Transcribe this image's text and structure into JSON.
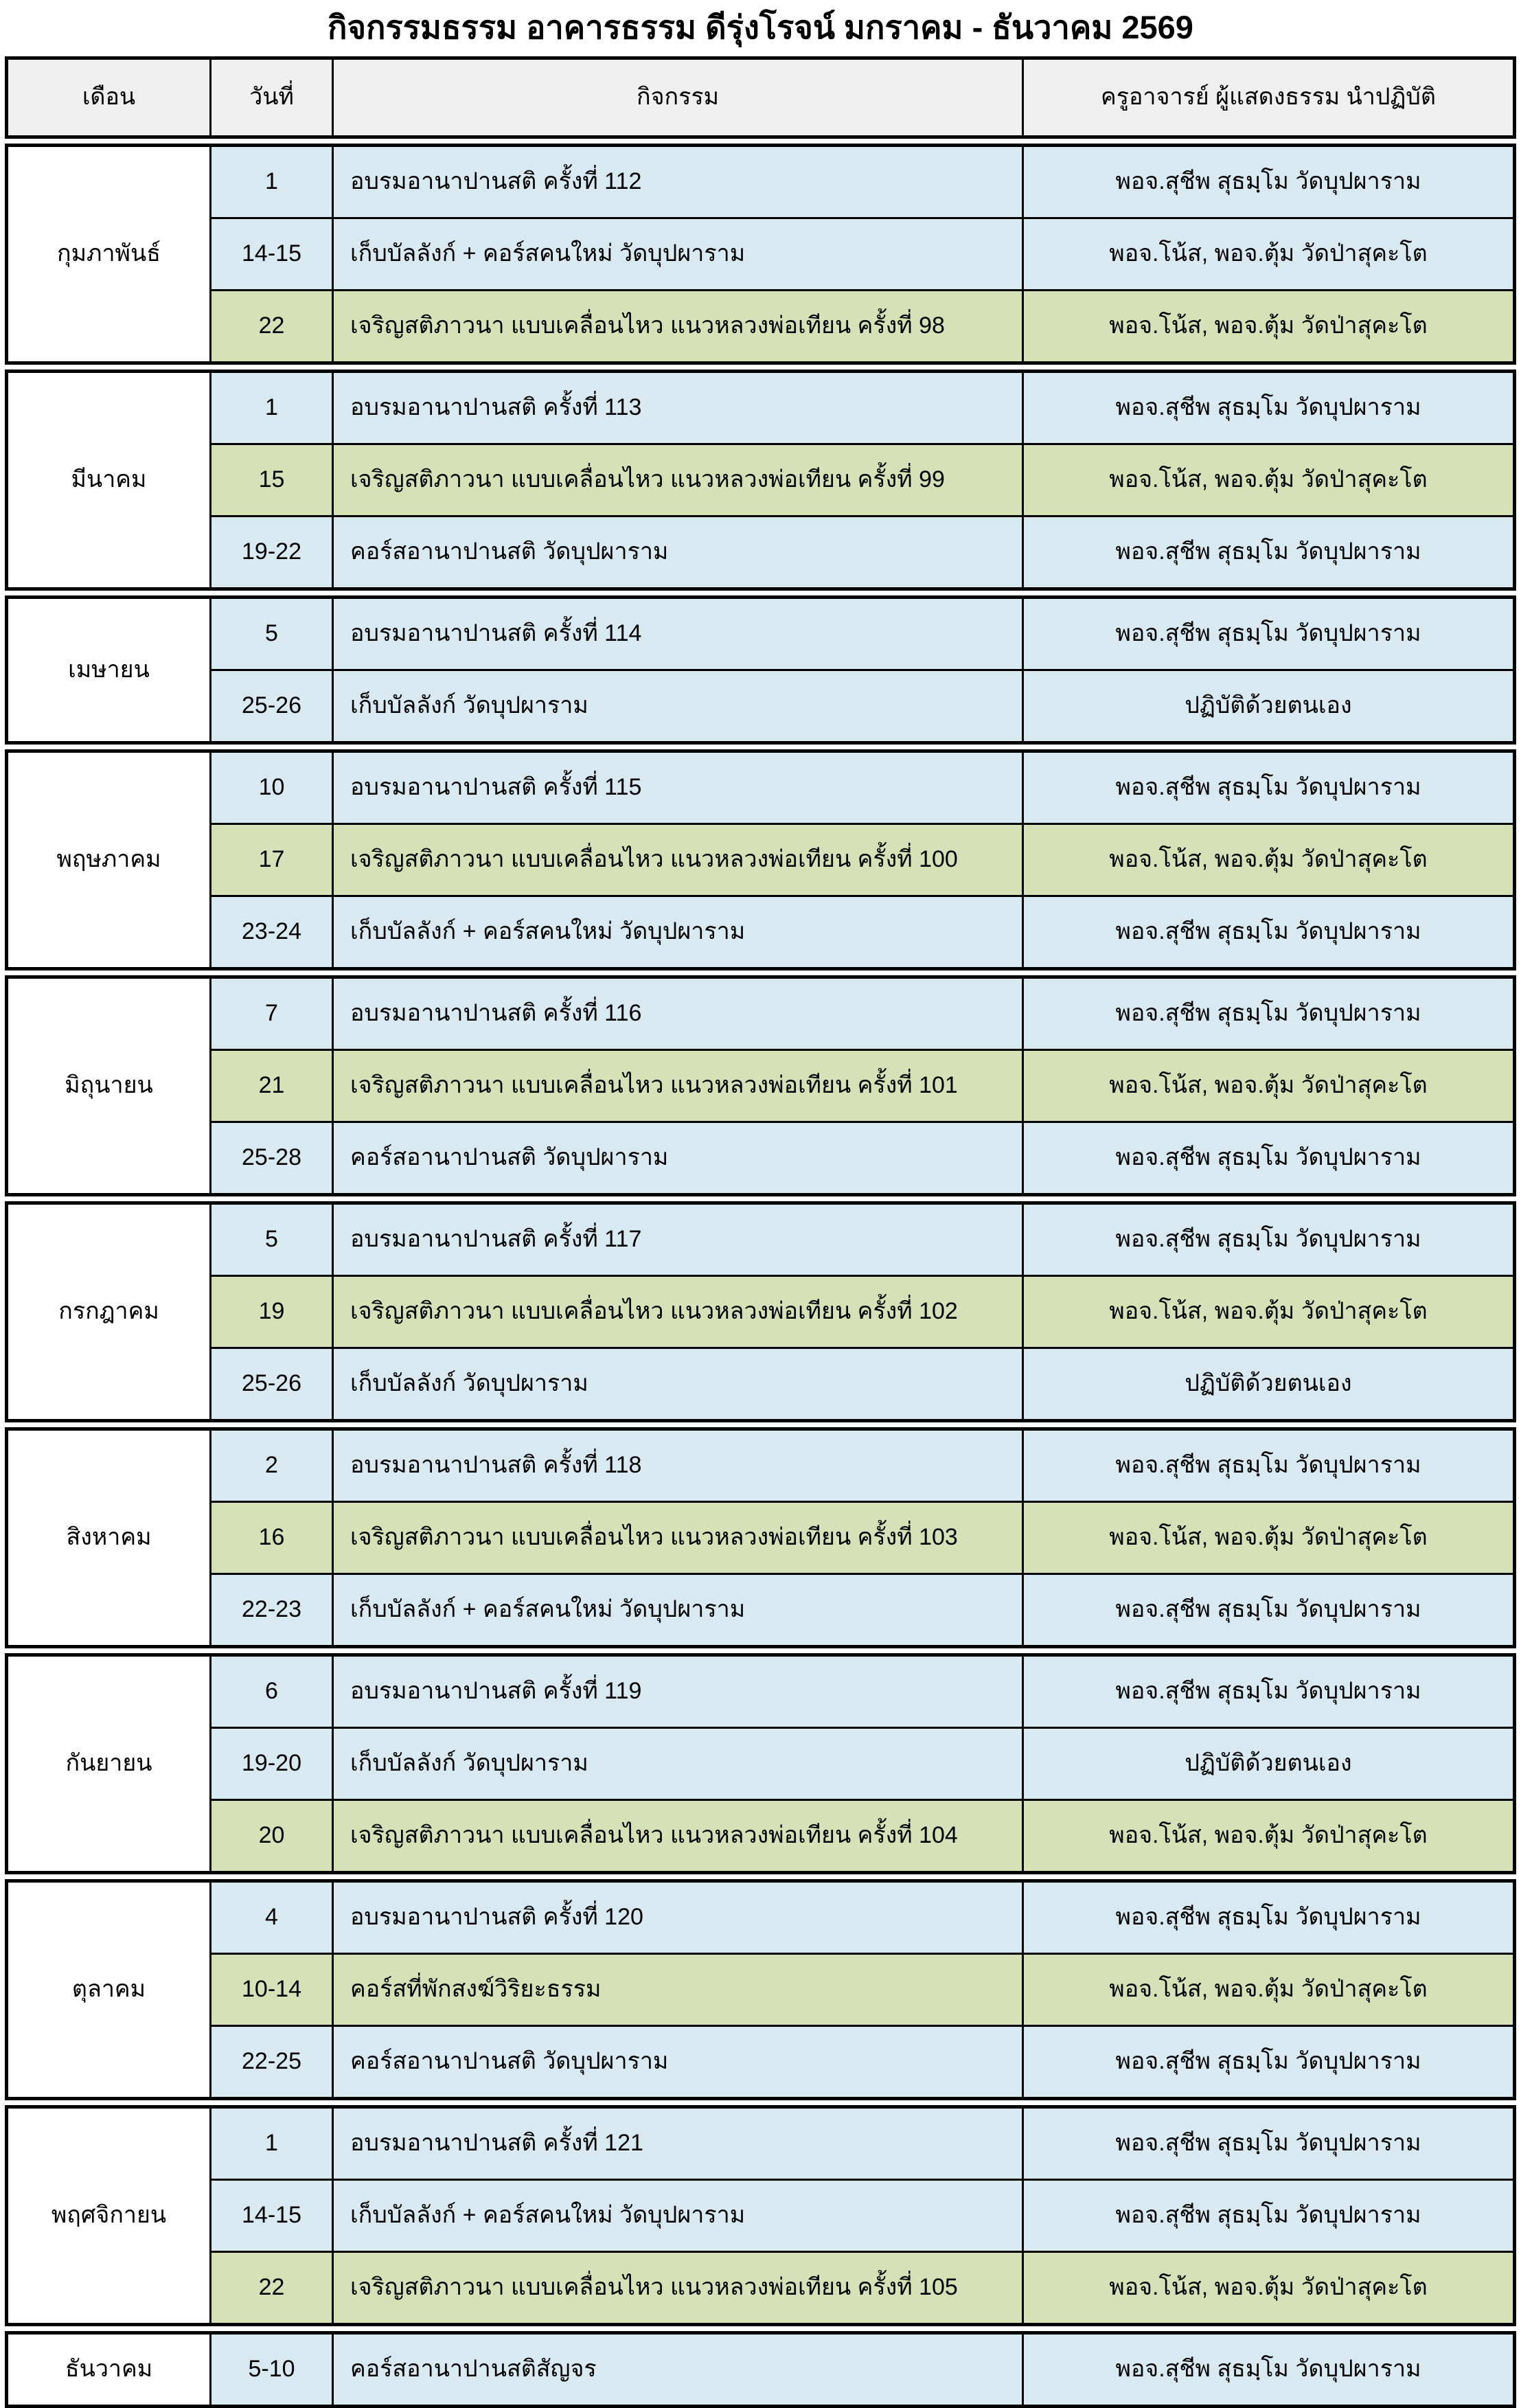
{
  "title": "กิจกรรมธรรม อาคารธรรม ดีรุ่งโรจน์ มกราคม - ธันวาคม 2569",
  "headers": {
    "month": "เดือน",
    "date": "วันที่",
    "activity": "กิจกรรม",
    "teacher": "ครูอาจารย์ ผู้แสดงธรรม นำปฏิบัติ"
  },
  "colors": {
    "blue": "#d9e9f1",
    "green": "#d6e1b7",
    "header_bg": "#efefef",
    "border": "#000000"
  },
  "months": [
    {
      "name": "กุมภาพันธ์",
      "rows": [
        {
          "date": "1",
          "activity": "อบรมอานาปานสติ ครั้งที่ 112",
          "teacher": "พอจ.สุชีพ สุธมฺโม วัดบุปผาราม",
          "highlight": "blue"
        },
        {
          "date": "14-15",
          "activity": "เก็บบัลลังก์  + คอร์สคนใหม่ วัดบุปผาราม",
          "teacher": "พอจ.โน้ส, พอจ.ตุ้ม วัดป่าสุคะโต",
          "highlight": "blue"
        },
        {
          "date": "22",
          "activity": "เจริญสติภาวนา แบบเคลื่อนไหว แนวหลวงพ่อเทียน ครั้งที่ 98",
          "teacher": "พอจ.โน้ส, พอจ.ตุ้ม วัดป่าสุคะโต",
          "highlight": "green"
        }
      ]
    },
    {
      "name": "มีนาคม",
      "rows": [
        {
          "date": "1",
          "activity": "อบรมอานาปานสติ ครั้งที่ 113",
          "teacher": "พอจ.สุชีพ สุธมฺโม วัดบุปผาราม",
          "highlight": "blue"
        },
        {
          "date": "15",
          "activity": "เจริญสติภาวนา แบบเคลื่อนไหว แนวหลวงพ่อเทียน ครั้งที่ 99",
          "teacher": "พอจ.โน้ส, พอจ.ตุ้ม วัดป่าสุคะโต",
          "highlight": "green"
        },
        {
          "date": "19-22",
          "activity": "คอร์สอานาปานสติ วัดบุปผาราม",
          "teacher": "พอจ.สุชีพ สุธมฺโม วัดบุปผาราม",
          "highlight": "blue"
        }
      ]
    },
    {
      "name": "เมษายน",
      "rows": [
        {
          "date": "5",
          "activity": "อบรมอานาปานสติ ครั้งที่ 114",
          "teacher": "พอจ.สุชีพ สุธมฺโม วัดบุปผาราม",
          "highlight": "blue"
        },
        {
          "date": "25-26",
          "activity": "เก็บบัลลังก์ วัดบุปผาราม",
          "teacher": "ปฏิบัติด้วยตนเอง",
          "highlight": "blue"
        }
      ]
    },
    {
      "name": "พฤษภาคม",
      "rows": [
        {
          "date": "10",
          "activity": "อบรมอานาปานสติ ครั้งที่ 115",
          "teacher": "พอจ.สุชีพ สุธมฺโม วัดบุปผาราม",
          "highlight": "blue"
        },
        {
          "date": "17",
          "activity": "เจริญสติภาวนา แบบเคลื่อนไหว แนวหลวงพ่อเทียน ครั้งที่ 100",
          "teacher": "พอจ.โน้ส, พอจ.ตุ้ม วัดป่าสุคะโต",
          "highlight": "green"
        },
        {
          "date": "23-24",
          "activity": "เก็บบัลลังก์  + คอร์สคนใหม่ วัดบุปผาราม",
          "teacher": "พอจ.สุชีพ สุธมฺโม วัดบุปผาราม",
          "highlight": "blue"
        }
      ]
    },
    {
      "name": "มิถุนายน",
      "rows": [
        {
          "date": "7",
          "activity": "อบรมอานาปานสติ ครั้งที่ 116",
          "teacher": "พอจ.สุชีพ สุธมฺโม วัดบุปผาราม",
          "highlight": "blue"
        },
        {
          "date": "21",
          "activity": "เจริญสติภาวนา แบบเคลื่อนไหว แนวหลวงพ่อเทียน ครั้งที่ 101",
          "teacher": "พอจ.โน้ส, พอจ.ตุ้ม วัดป่าสุคะโต",
          "highlight": "green"
        },
        {
          "date": "25-28",
          "activity": "คอร์สอานาปานสติ วัดบุปผาราม",
          "teacher": "พอจ.สุชีพ สุธมฺโม วัดบุปผาราม",
          "highlight": "blue"
        }
      ]
    },
    {
      "name": "กรกฎาคม",
      "rows": [
        {
          "date": "5",
          "activity": "อบรมอานาปานสติ ครั้งที่ 117",
          "teacher": "พอจ.สุชีพ สุธมฺโม วัดบุปผาราม",
          "highlight": "blue"
        },
        {
          "date": "19",
          "activity": "เจริญสติภาวนา แบบเคลื่อนไหว แนวหลวงพ่อเทียน ครั้งที่ 102",
          "teacher": "พอจ.โน้ส, พอจ.ตุ้ม วัดป่าสุคะโต",
          "highlight": "green"
        },
        {
          "date": "25-26",
          "activity": "เก็บบัลลังก์ วัดบุปผาราม",
          "teacher": "ปฏิบัติด้วยตนเอง",
          "highlight": "blue"
        }
      ]
    },
    {
      "name": "สิงหาคม",
      "rows": [
        {
          "date": "2",
          "activity": "อบรมอานาปานสติ ครั้งที่ 118",
          "teacher": "พอจ.สุชีพ สุธมฺโม วัดบุปผาราม",
          "highlight": "blue"
        },
        {
          "date": "16",
          "activity": "เจริญสติภาวนา แบบเคลื่อนไหว แนวหลวงพ่อเทียน ครั้งที่ 103",
          "teacher": "พอจ.โน้ส, พอจ.ตุ้ม วัดป่าสุคะโต",
          "highlight": "green"
        },
        {
          "date": "22-23",
          "activity": "เก็บบัลลังก์  + คอร์สคนใหม่ วัดบุปผาราม",
          "teacher": "พอจ.สุชีพ สุธมฺโม วัดบุปผาราม",
          "highlight": "blue"
        }
      ]
    },
    {
      "name": "กันยายน",
      "rows": [
        {
          "date": "6",
          "activity": "อบรมอานาปานสติ ครั้งที่ 119",
          "teacher": "พอจ.สุชีพ สุธมฺโม วัดบุปผาราม",
          "highlight": "blue"
        },
        {
          "date": "19-20",
          "activity": "เก็บบัลลังก์ วัดบุปผาราม",
          "teacher": "ปฏิบัติด้วยตนเอง",
          "highlight": "blue"
        },
        {
          "date": "20",
          "activity": "เจริญสติภาวนา แบบเคลื่อนไหว แนวหลวงพ่อเทียน ครั้งที่ 104",
          "teacher": "พอจ.โน้ส, พอจ.ตุ้ม วัดป่าสุคะโต",
          "highlight": "green"
        }
      ]
    },
    {
      "name": "ตุลาคม",
      "rows": [
        {
          "date": "4",
          "activity": "อบรมอานาปานสติ ครั้งที่ 120",
          "teacher": "พอจ.สุชีพ สุธมฺโม วัดบุปผาราม",
          "highlight": "blue"
        },
        {
          "date": "10-14",
          "activity": "คอร์สที่พักสงฆ์วิริยะธรรม",
          "teacher": "พอจ.โน้ส, พอจ.ตุ้ม วัดป่าสุคะโต",
          "highlight": "green"
        },
        {
          "date": "22-25",
          "activity": "คอร์สอานาปานสติ วัดบุปผาราม",
          "teacher": "พอจ.สุชีพ สุธมฺโม วัดบุปผาราม",
          "highlight": "blue"
        }
      ]
    },
    {
      "name": "พฤศจิกายน",
      "rows": [
        {
          "date": "1",
          "activity": "อบรมอานาปานสติ ครั้งที่ 121",
          "teacher": "พอจ.สุชีพ สุธมฺโม วัดบุปผาราม",
          "highlight": "blue"
        },
        {
          "date": "14-15",
          "activity": "เก็บบัลลังก์  + คอร์สคนใหม่ วัดบุปผาราม",
          "teacher": "พอจ.สุชีพ สุธมฺโม วัดบุปผาราม",
          "highlight": "blue"
        },
        {
          "date": "22",
          "activity": "เจริญสติภาวนา แบบเคลื่อนไหว แนวหลวงพ่อเทียน ครั้งที่ 105",
          "teacher": "พอจ.โน้ส, พอจ.ตุ้ม วัดป่าสุคะโต",
          "highlight": "green"
        }
      ]
    },
    {
      "name": "ธันวาคม",
      "rows": [
        {
          "date": "5-10",
          "activity": "คอร์สอานาปานสติสัญจร",
          "teacher": "พอจ.สุชีพ สุธมฺโม วัดบุปผาราม",
          "highlight": "blue"
        }
      ]
    }
  ]
}
